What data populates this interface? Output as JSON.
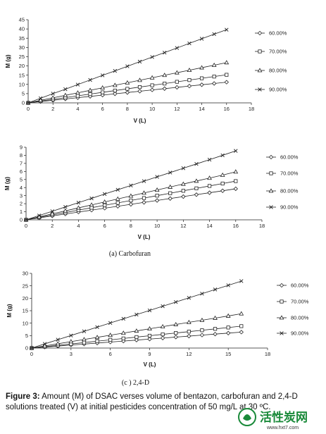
{
  "chart_data": [
    {
      "type": "line",
      "title": "",
      "xlabel": "V (L)",
      "ylabel": "M (g)",
      "xlim": [
        0,
        18
      ],
      "ylim": [
        0,
        45
      ],
      "xticks": [
        0,
        2,
        4,
        6,
        8,
        10,
        12,
        14,
        16,
        18
      ],
      "yticks": [
        0,
        5,
        10,
        15,
        20,
        25,
        30,
        35,
        40,
        45
      ],
      "legend_position": "right",
      "series": [
        {
          "name": "60.00%",
          "marker": "diamond",
          "x": [
            0,
            1,
            2,
            3,
            4,
            5,
            6,
            7,
            8,
            9,
            10,
            11,
            12,
            13,
            14,
            15,
            16
          ],
          "values": [
            0,
            0.7,
            1.4,
            2.1,
            2.8,
            3.5,
            4.2,
            4.9,
            5.6,
            6.3,
            7.0,
            7.7,
            8.4,
            9.1,
            9.8,
            10.5,
            11.2
          ]
        },
        {
          "name": "70.00%",
          "marker": "square",
          "x": [
            0,
            1,
            2,
            3,
            4,
            5,
            6,
            7,
            8,
            9,
            10,
            11,
            12,
            13,
            14,
            15,
            16
          ],
          "values": [
            0,
            0.95,
            1.9,
            2.85,
            3.8,
            4.75,
            5.7,
            6.65,
            7.6,
            8.55,
            9.5,
            10.45,
            11.4,
            12.35,
            13.3,
            14.25,
            15.2
          ]
        },
        {
          "name": "80.00%",
          "marker": "triangle",
          "x": [
            0,
            1,
            2,
            3,
            4,
            5,
            6,
            7,
            8,
            9,
            10,
            11,
            12,
            13,
            14,
            15,
            16
          ],
          "values": [
            0,
            1.36,
            2.72,
            4.08,
            5.44,
            6.8,
            8.16,
            9.52,
            10.88,
            12.24,
            13.6,
            14.96,
            16.32,
            17.68,
            19.04,
            20.4,
            21.8
          ]
        },
        {
          "name": "90.00%",
          "marker": "x",
          "x": [
            0,
            1,
            2,
            3,
            4,
            5,
            6,
            7,
            8,
            9,
            10,
            11,
            12,
            13,
            14,
            15,
            16
          ],
          "values": [
            0,
            2.5,
            5.0,
            7.4,
            9.9,
            12.4,
            14.9,
            17.3,
            19.8,
            22.3,
            24.8,
            27.2,
            29.7,
            32.2,
            34.7,
            37.2,
            39.6
          ]
        }
      ]
    },
    {
      "type": "line",
      "title": "",
      "subtitle": "(a)  Carbofuran",
      "xlabel": "V (L)",
      "ylabel": "M (g)",
      "xlim": [
        0,
        18
      ],
      "ylim": [
        0,
        9
      ],
      "xticks": [
        0,
        2,
        4,
        6,
        8,
        10,
        12,
        14,
        16,
        18
      ],
      "yticks": [
        0,
        1,
        2,
        3,
        4,
        5,
        6,
        7,
        8,
        9
      ],
      "legend_position": "right",
      "series": [
        {
          "name": "60.00%",
          "marker": "diamond",
          "x": [
            0,
            1,
            2,
            3,
            4,
            5,
            6,
            7,
            8,
            9,
            10,
            11,
            12,
            13,
            14,
            15,
            16
          ],
          "values": [
            0,
            0.24,
            0.48,
            0.72,
            0.96,
            1.2,
            1.44,
            1.68,
            1.92,
            2.16,
            2.4,
            2.64,
            2.88,
            3.12,
            3.36,
            3.6,
            3.85
          ]
        },
        {
          "name": "70.00%",
          "marker": "square",
          "x": [
            0,
            1,
            2,
            3,
            4,
            5,
            6,
            7,
            8,
            9,
            10,
            11,
            12,
            13,
            14,
            15,
            16
          ],
          "values": [
            0,
            0.3,
            0.6,
            0.9,
            1.2,
            1.5,
            1.8,
            2.1,
            2.4,
            2.7,
            3.0,
            3.3,
            3.6,
            3.9,
            4.2,
            4.5,
            4.8
          ]
        },
        {
          "name": "80.00%",
          "marker": "triangle",
          "x": [
            0,
            1,
            2,
            3,
            4,
            5,
            6,
            7,
            8,
            9,
            10,
            11,
            12,
            13,
            14,
            15,
            16
          ],
          "values": [
            0,
            0.37,
            0.74,
            1.11,
            1.48,
            1.85,
            2.22,
            2.59,
            2.96,
            3.33,
            3.7,
            4.07,
            4.44,
            4.81,
            5.18,
            5.55,
            5.95
          ]
        },
        {
          "name": "90.00%",
          "marker": "x",
          "x": [
            0,
            1,
            2,
            3,
            4,
            5,
            6,
            7,
            8,
            9,
            10,
            11,
            12,
            13,
            14,
            15,
            16
          ],
          "values": [
            0,
            0.53,
            1.06,
            1.6,
            2.13,
            2.66,
            3.2,
            3.73,
            4.26,
            4.8,
            5.33,
            5.86,
            6.4,
            6.93,
            7.46,
            8.0,
            8.55
          ]
        }
      ]
    },
    {
      "type": "line",
      "title": "",
      "subtitle": "(c )  2,4-D",
      "xlabel": "V (L)",
      "ylabel": "M (g)",
      "xlim": [
        0,
        18
      ],
      "ylim": [
        0,
        30
      ],
      "xticks": [
        0,
        3,
        6,
        9,
        12,
        15,
        18
      ],
      "yticks": [
        0,
        5,
        10,
        15,
        20,
        25,
        30
      ],
      "legend_position": "right",
      "series": [
        {
          "name": "60.00%",
          "marker": "diamond",
          "x": [
            0,
            1,
            2,
            3,
            4,
            5,
            6,
            7,
            8,
            9,
            10,
            11,
            12,
            13,
            14,
            15,
            16
          ],
          "values": [
            0,
            0.4,
            0.8,
            1.2,
            1.6,
            2.0,
            2.4,
            2.8,
            3.2,
            3.6,
            4.0,
            4.4,
            4.8,
            5.2,
            5.6,
            6.0,
            6.4
          ]
        },
        {
          "name": "70.00%",
          "marker": "square",
          "x": [
            0,
            1,
            2,
            3,
            4,
            5,
            6,
            7,
            8,
            9,
            10,
            11,
            12,
            13,
            14,
            15,
            16
          ],
          "values": [
            0,
            0.55,
            1.1,
            1.65,
            2.2,
            2.75,
            3.3,
            3.85,
            4.4,
            4.95,
            5.5,
            6.05,
            6.6,
            7.15,
            7.7,
            8.25,
            8.8
          ]
        },
        {
          "name": "80.00%",
          "marker": "triangle",
          "x": [
            0,
            1,
            2,
            3,
            4,
            5,
            6,
            7,
            8,
            9,
            10,
            11,
            12,
            13,
            14,
            15,
            16
          ],
          "values": [
            0,
            0.86,
            1.72,
            2.58,
            3.44,
            4.3,
            5.16,
            6.02,
            6.88,
            7.74,
            8.6,
            9.46,
            10.32,
            11.18,
            12.04,
            12.9,
            13.8
          ]
        },
        {
          "name": "90.00%",
          "marker": "x",
          "x": [
            0,
            1,
            2,
            3,
            4,
            5,
            6,
            7,
            8,
            9,
            10,
            11,
            12,
            13,
            14,
            15,
            16
          ],
          "values": [
            0,
            1.68,
            3.36,
            5.04,
            6.72,
            8.4,
            10.08,
            11.76,
            13.44,
            15.12,
            16.8,
            18.48,
            20.16,
            21.84,
            23.52,
            25.2,
            26.9
          ]
        }
      ]
    }
  ],
  "caption": {
    "label": "Figure 3:",
    "text": " Amount (M) of DSAC verses volume of bentazon, carbofuran and 2,4-D solutions treated (V) at initial pesticides concentration of 50 mg/L at 30 ºC."
  },
  "watermark": {
    "brand": "活性炭网",
    "url": "www.hxt7.com",
    "color": "#1a8a3a"
  }
}
